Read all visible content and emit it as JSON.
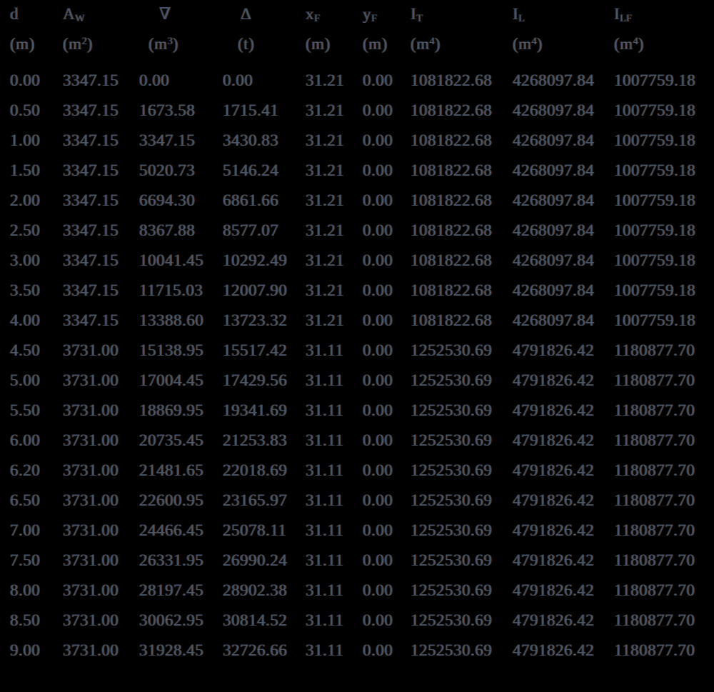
{
  "colors": {
    "background": "#000000",
    "text": "#47566b"
  },
  "chart_data": {
    "type": "table",
    "columns": [
      {
        "id": "d",
        "name": "d",
        "subscript": "",
        "unit_open": "(m",
        "unit_sup": "",
        "unit_close": ")"
      },
      {
        "id": "aw",
        "name": "A",
        "subscript": "W",
        "unit_open": "(m",
        "unit_sup": "2",
        "unit_close": ")"
      },
      {
        "id": "vol",
        "name": "∇",
        "subscript": "",
        "unit_open": "(m",
        "unit_sup": "3",
        "unit_close": ")"
      },
      {
        "id": "disp",
        "name": "Δ",
        "subscript": "",
        "unit_open": "(t",
        "unit_sup": "",
        "unit_close": ")"
      },
      {
        "id": "xf",
        "name": "x",
        "subscript": "F",
        "unit_open": "(m",
        "unit_sup": "",
        "unit_close": ")"
      },
      {
        "id": "yf",
        "name": "y",
        "subscript": "F",
        "unit_open": "(m",
        "unit_sup": "",
        "unit_close": ")"
      },
      {
        "id": "it",
        "name": "I",
        "subscript": "T",
        "unit_open": "(m",
        "unit_sup": "4",
        "unit_close": ")"
      },
      {
        "id": "il",
        "name": "I",
        "subscript": "L",
        "unit_open": "(m",
        "unit_sup": "4",
        "unit_close": ")"
      },
      {
        "id": "ilf",
        "name": "I",
        "subscript": "LF",
        "unit_open": "(m",
        "unit_sup": "4",
        "unit_close": ")"
      }
    ],
    "rows": [
      [
        "0.00",
        "3347.15",
        "0.00",
        "0.00",
        "31.21",
        "0.00",
        "1081822.68",
        "4268097.84",
        "1007759.18"
      ],
      [
        "0.50",
        "3347.15",
        "1673.58",
        "1715.41",
        "31.21",
        "0.00",
        "1081822.68",
        "4268097.84",
        "1007759.18"
      ],
      [
        "1.00",
        "3347.15",
        "3347.15",
        "3430.83",
        "31.21",
        "0.00",
        "1081822.68",
        "4268097.84",
        "1007759.18"
      ],
      [
        "1.50",
        "3347.15",
        "5020.73",
        "5146.24",
        "31.21",
        "0.00",
        "1081822.68",
        "4268097.84",
        "1007759.18"
      ],
      [
        "2.00",
        "3347.15",
        "6694.30",
        "6861.66",
        "31.21",
        "0.00",
        "1081822.68",
        "4268097.84",
        "1007759.18"
      ],
      [
        "2.50",
        "3347.15",
        "8367.88",
        "8577.07",
        "31.21",
        "0.00",
        "1081822.68",
        "4268097.84",
        "1007759.18"
      ],
      [
        "3.00",
        "3347.15",
        "10041.45",
        "10292.49",
        "31.21",
        "0.00",
        "1081822.68",
        "4268097.84",
        "1007759.18"
      ],
      [
        "3.50",
        "3347.15",
        "11715.03",
        "12007.90",
        "31.21",
        "0.00",
        "1081822.68",
        "4268097.84",
        "1007759.18"
      ],
      [
        "4.00",
        "3347.15",
        "13388.60",
        "13723.32",
        "31.21",
        "0.00",
        "1081822.68",
        "4268097.84",
        "1007759.18"
      ],
      [
        "4.50",
        "3731.00",
        "15138.95",
        "15517.42",
        "31.11",
        "0.00",
        "1252530.69",
        "4791826.42",
        "1180877.70"
      ],
      [
        "5.00",
        "3731.00",
        "17004.45",
        "17429.56",
        "31.11",
        "0.00",
        "1252530.69",
        "4791826.42",
        "1180877.70"
      ],
      [
        "5.50",
        "3731.00",
        "18869.95",
        "19341.69",
        "31.11",
        "0.00",
        "1252530.69",
        "4791826.42",
        "1180877.70"
      ],
      [
        "6.00",
        "3731.00",
        "20735.45",
        "21253.83",
        "31.11",
        "0.00",
        "1252530.69",
        "4791826.42",
        "1180877.70"
      ],
      [
        "6.20",
        "3731.00",
        "21481.65",
        "22018.69",
        "31.11",
        "0.00",
        "1252530.69",
        "4791826.42",
        "1180877.70"
      ],
      [
        "6.50",
        "3731.00",
        "22600.95",
        "23165.97",
        "31.11",
        "0.00",
        "1252530.69",
        "4791826.42",
        "1180877.70"
      ],
      [
        "7.00",
        "3731.00",
        "24466.45",
        "25078.11",
        "31.11",
        "0.00",
        "1252530.69",
        "4791826.42",
        "1180877.70"
      ],
      [
        "7.50",
        "3731.00",
        "26331.95",
        "26990.24",
        "31.11",
        "0.00",
        "1252530.69",
        "4791826.42",
        "1180877.70"
      ],
      [
        "8.00",
        "3731.00",
        "28197.45",
        "28902.38",
        "31.11",
        "0.00",
        "1252530.69",
        "4791826.42",
        "1180877.70"
      ],
      [
        "8.50",
        "3731.00",
        "30062.95",
        "30814.52",
        "31.11",
        "0.00",
        "1252530.69",
        "4791826.42",
        "1180877.70"
      ],
      [
        "9.00",
        "3731.00",
        "31928.45",
        "32726.66",
        "31.11",
        "0.00",
        "1252530.69",
        "4791826.42",
        "1180877.70"
      ]
    ]
  }
}
